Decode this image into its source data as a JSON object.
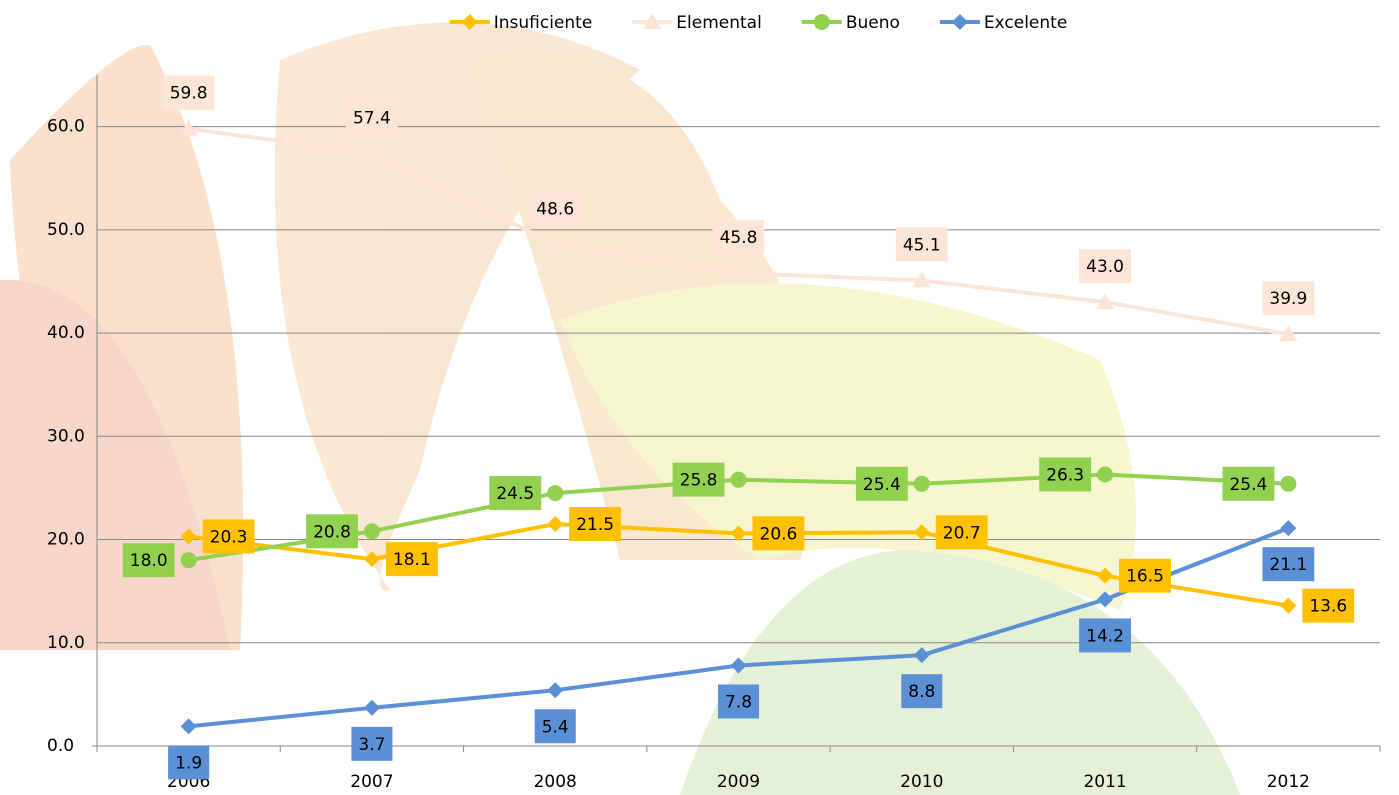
{
  "chart_data": {
    "type": "line",
    "categories": [
      "2006",
      "2007",
      "2008",
      "2009",
      "2010",
      "2011",
      "2012"
    ],
    "series": [
      {
        "name": "Insuficiente",
        "color": "#ffc000",
        "marker": "diamond",
        "values": [
          20.3,
          18.1,
          21.5,
          20.6,
          20.7,
          16.5,
          13.6
        ],
        "value_labels": [
          "20.3",
          "18.1",
          "21.5",
          "20.6",
          "20.7",
          "16.5",
          "13.6"
        ]
      },
      {
        "name": "Elemental",
        "color": "#fbe5d6",
        "marker": "triangle",
        "values": [
          59.8,
          57.4,
          48.6,
          45.8,
          45.1,
          43.0,
          39.9
        ],
        "value_labels": [
          "59.8",
          "57.4",
          "48.6",
          "45.8",
          "45.1",
          "43.0",
          "39.9"
        ]
      },
      {
        "name": "Bueno",
        "color": "#92d050",
        "marker": "circle",
        "values": [
          18.0,
          20.8,
          24.5,
          25.8,
          25.4,
          26.3,
          25.4
        ],
        "value_labels": [
          "18.0",
          "20.8",
          "24.5",
          "25.8",
          "25.4",
          "26.3",
          "25.4"
        ]
      },
      {
        "name": "Excelente",
        "color": "#5b8fd6",
        "marker": "diamond",
        "values": [
          1.9,
          3.7,
          5.4,
          7.8,
          8.8,
          14.2,
          21.1
        ],
        "value_labels": [
          "1.9",
          "3.7",
          "5.4",
          "7.8",
          "8.8",
          "14.2",
          "21.1"
        ]
      }
    ],
    "ylim": [
      0,
      65
    ],
    "yticks": [
      {
        "value": 0,
        "label": "0.0"
      },
      {
        "value": 10,
        "label": "10.0"
      },
      {
        "value": 20,
        "label": "20.0"
      },
      {
        "value": 30,
        "label": "30.0"
      },
      {
        "value": 40,
        "label": "40.0"
      },
      {
        "value": 50,
        "label": "50.0"
      },
      {
        "value": 60,
        "label": "60.0"
      }
    ],
    "grid": true,
    "legend": "top"
  }
}
